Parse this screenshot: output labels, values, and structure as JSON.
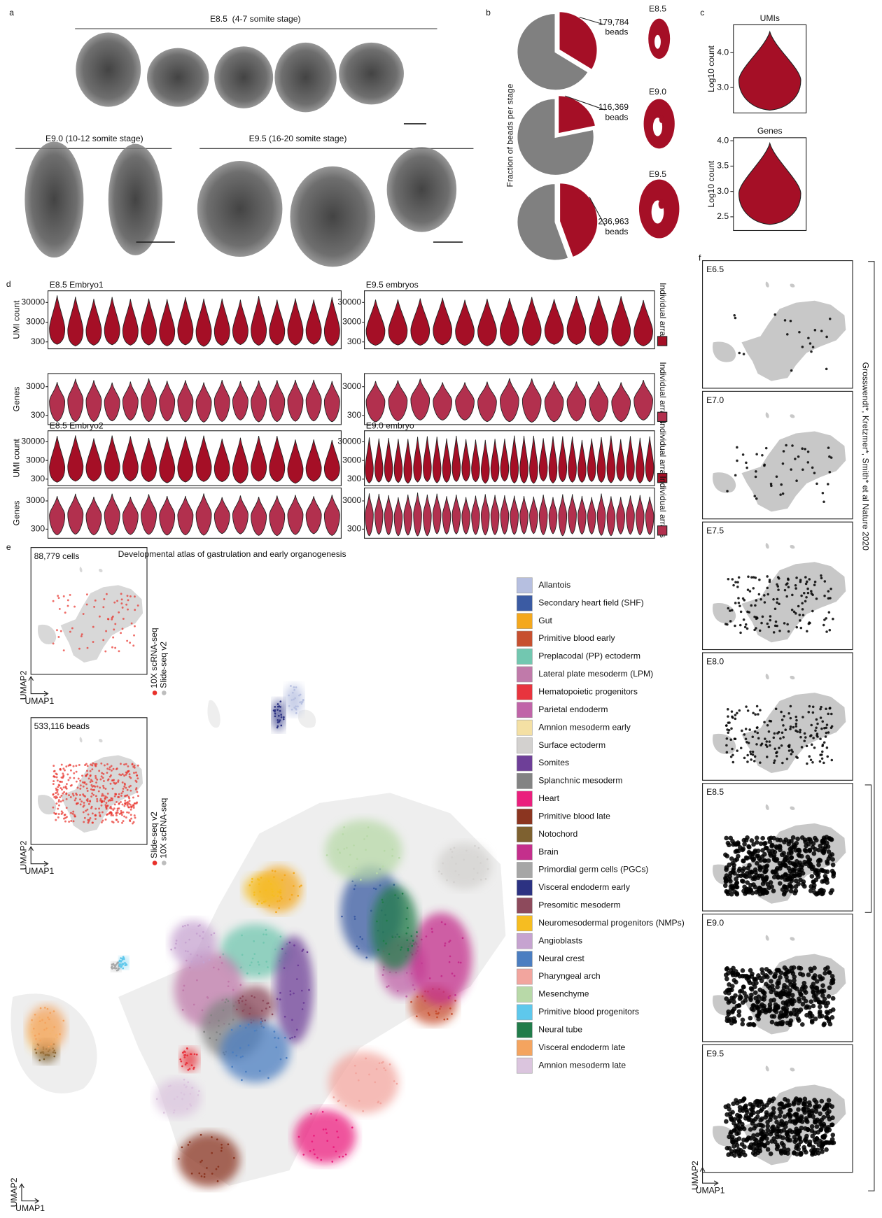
{
  "panel_labels": [
    "a",
    "b",
    "c",
    "d",
    "e",
    "f"
  ],
  "panel_a": {
    "groups": [
      "E8.5  (4-7 somite stage)",
      "E9.0 (10-12 somite stage)",
      "E9.5 (16-20 somite stage)"
    ]
  },
  "chart_data": [
    {
      "type": "pie",
      "y_label": "Fraction of beads per stage",
      "categories": [
        "E8.5",
        "E9.0",
        "E9.5"
      ],
      "values": [
        179784,
        116369,
        236963
      ],
      "value_labels": [
        "179,784",
        "116,369",
        "236,963"
      ],
      "unit_label": "beads",
      "color": "#a50f26",
      "rest_color": "#808080"
    },
    {
      "type": "violin",
      "title": "UMIs",
      "y_label": "Log10 count",
      "ylim": [
        2.27,
        4.8
      ],
      "yticks": [
        {
          "value": 3,
          "label": "3.0"
        },
        {
          "value": 4,
          "label": "4.0"
        }
      ],
      "color": "#a50f26"
    },
    {
      "type": "violin",
      "title": "Genes",
      "y_label": "Log10 count",
      "ylim": [
        2.23,
        4.06
      ],
      "yticks": [
        {
          "value": 2.5,
          "label": "2.5"
        },
        {
          "value": 3,
          "label": "3.0"
        },
        {
          "value": 3.5,
          "label": "3.5"
        },
        {
          "value": 4,
          "label": "4.0"
        }
      ],
      "color": "#a50f26"
    }
  ],
  "panel_d": {
    "umi_label": "UMI count",
    "genes_label": "Genes",
    "side_label": "Individual arrays",
    "log": true,
    "umi_ylim": [
      134,
      117000
    ],
    "umi_yticks": [
      300,
      3000,
      30000
    ],
    "genes_ylim": [
      143,
      8600
    ],
    "genes_yticks": [
      300,
      3000
    ],
    "umi_color": "#a50f26",
    "genes_color": "#b2304e",
    "blocks": [
      {
        "title": "E8.5 Embryo1",
        "arrays": 16
      },
      {
        "title": "E9.5 embryos",
        "arrays": 13
      },
      {
        "title": "E8.5 Embryo2",
        "arrays": 16
      },
      {
        "title": "E9.0 embryo",
        "arrays": 30
      }
    ]
  },
  "panel_e": {
    "title": "Developmental atlas of gastrulation and early organogenesis",
    "x_label": "UMAP1",
    "y_label": "UMAP2",
    "insets": [
      {
        "count_label": "88,779 cells",
        "legend": [
          {
            "name": "10X scRNA-seq",
            "color": "#e8302a"
          },
          {
            "name": "Slide-seq v2",
            "color": "#bdbdbd"
          }
        ]
      },
      {
        "count_label": "533,116 beads",
        "legend": [
          {
            "name": "Slide-seq v2",
            "color": "#e8302a"
          },
          {
            "name": "10X scRNA-seq",
            "color": "#bdbdbd"
          }
        ]
      }
    ],
    "cell_types": [
      {
        "name": "Allantois",
        "color": "#b6bfe0"
      },
      {
        "name": "Secondary heart field (SHF)",
        "color": "#3b5ba3"
      },
      {
        "name": "Gut",
        "color": "#f4a81d"
      },
      {
        "name": "Primitive blood early",
        "color": "#c7502f"
      },
      {
        "name": "Preplacodal (PP) ectoderm",
        "color": "#72c7b0"
      },
      {
        "name": "Lateral plate mesoderm (LPM)",
        "color": "#c07aaa"
      },
      {
        "name": "Hematopoietic progenitors",
        "color": "#e8343e"
      },
      {
        "name": "Parietal endoderm",
        "color": "#c064a8"
      },
      {
        "name": "Amnion mesoderm early",
        "color": "#f4e0a4"
      },
      {
        "name": "Surface ectoderm",
        "color": "#d3d1cf"
      },
      {
        "name": "Somites",
        "color": "#6e3f98"
      },
      {
        "name": "Splanchnic mesoderm",
        "color": "#838383"
      },
      {
        "name": "Heart",
        "color": "#ea1f7d"
      },
      {
        "name": "Primitive blood late",
        "color": "#8b3520"
      },
      {
        "name": "Notochord",
        "color": "#7e6130"
      },
      {
        "name": "Brain",
        "color": "#c42f8c"
      },
      {
        "name": "Primordial germ cells (PGCs)",
        "color": "#a6a6a6"
      },
      {
        "name": "Visceral endoderm early",
        "color": "#2c3282"
      },
      {
        "name": "Presomitic mesoderm",
        "color": "#8d4a5c"
      },
      {
        "name": "Neuromesodermal progenitors (NMPs)",
        "color": "#f6bd21"
      },
      {
        "name": "Angioblasts",
        "color": "#c6a3d0"
      },
      {
        "name": "Neural crest",
        "color": "#4b7ec1"
      },
      {
        "name": "Pharyngeal arch",
        "color": "#f2a59e"
      },
      {
        "name": "Mesenchyme",
        "color": "#b8d9a8"
      },
      {
        "name": "Primitive blood progenitors",
        "color": "#5ec8ec"
      },
      {
        "name": "Neural tube",
        "color": "#217c4a"
      },
      {
        "name": "Visceral endoderm late",
        "color": "#f4a45f"
      },
      {
        "name": "Amnion mesoderm late",
        "color": "#dbc5de"
      }
    ]
  },
  "panel_f": {
    "stages": [
      "E6.5",
      "E7.0",
      "E7.5",
      "E8.0",
      "E8.5",
      "E9.0",
      "E9.5"
    ],
    "citation": "Grosswendt*, Kretzmer*, Smith* et al Nature 2020",
    "x_label": "UMAP1",
    "y_label": "UMAP2"
  }
}
